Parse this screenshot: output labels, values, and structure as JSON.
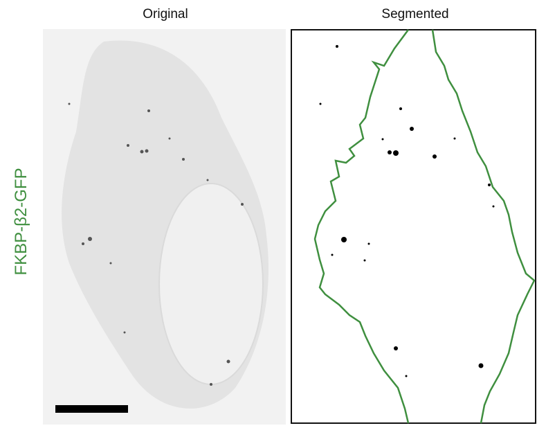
{
  "panels": {
    "left_title": "Original",
    "right_title": "Segmented",
    "row_label": "FKBP-β2-GFP"
  }
}
